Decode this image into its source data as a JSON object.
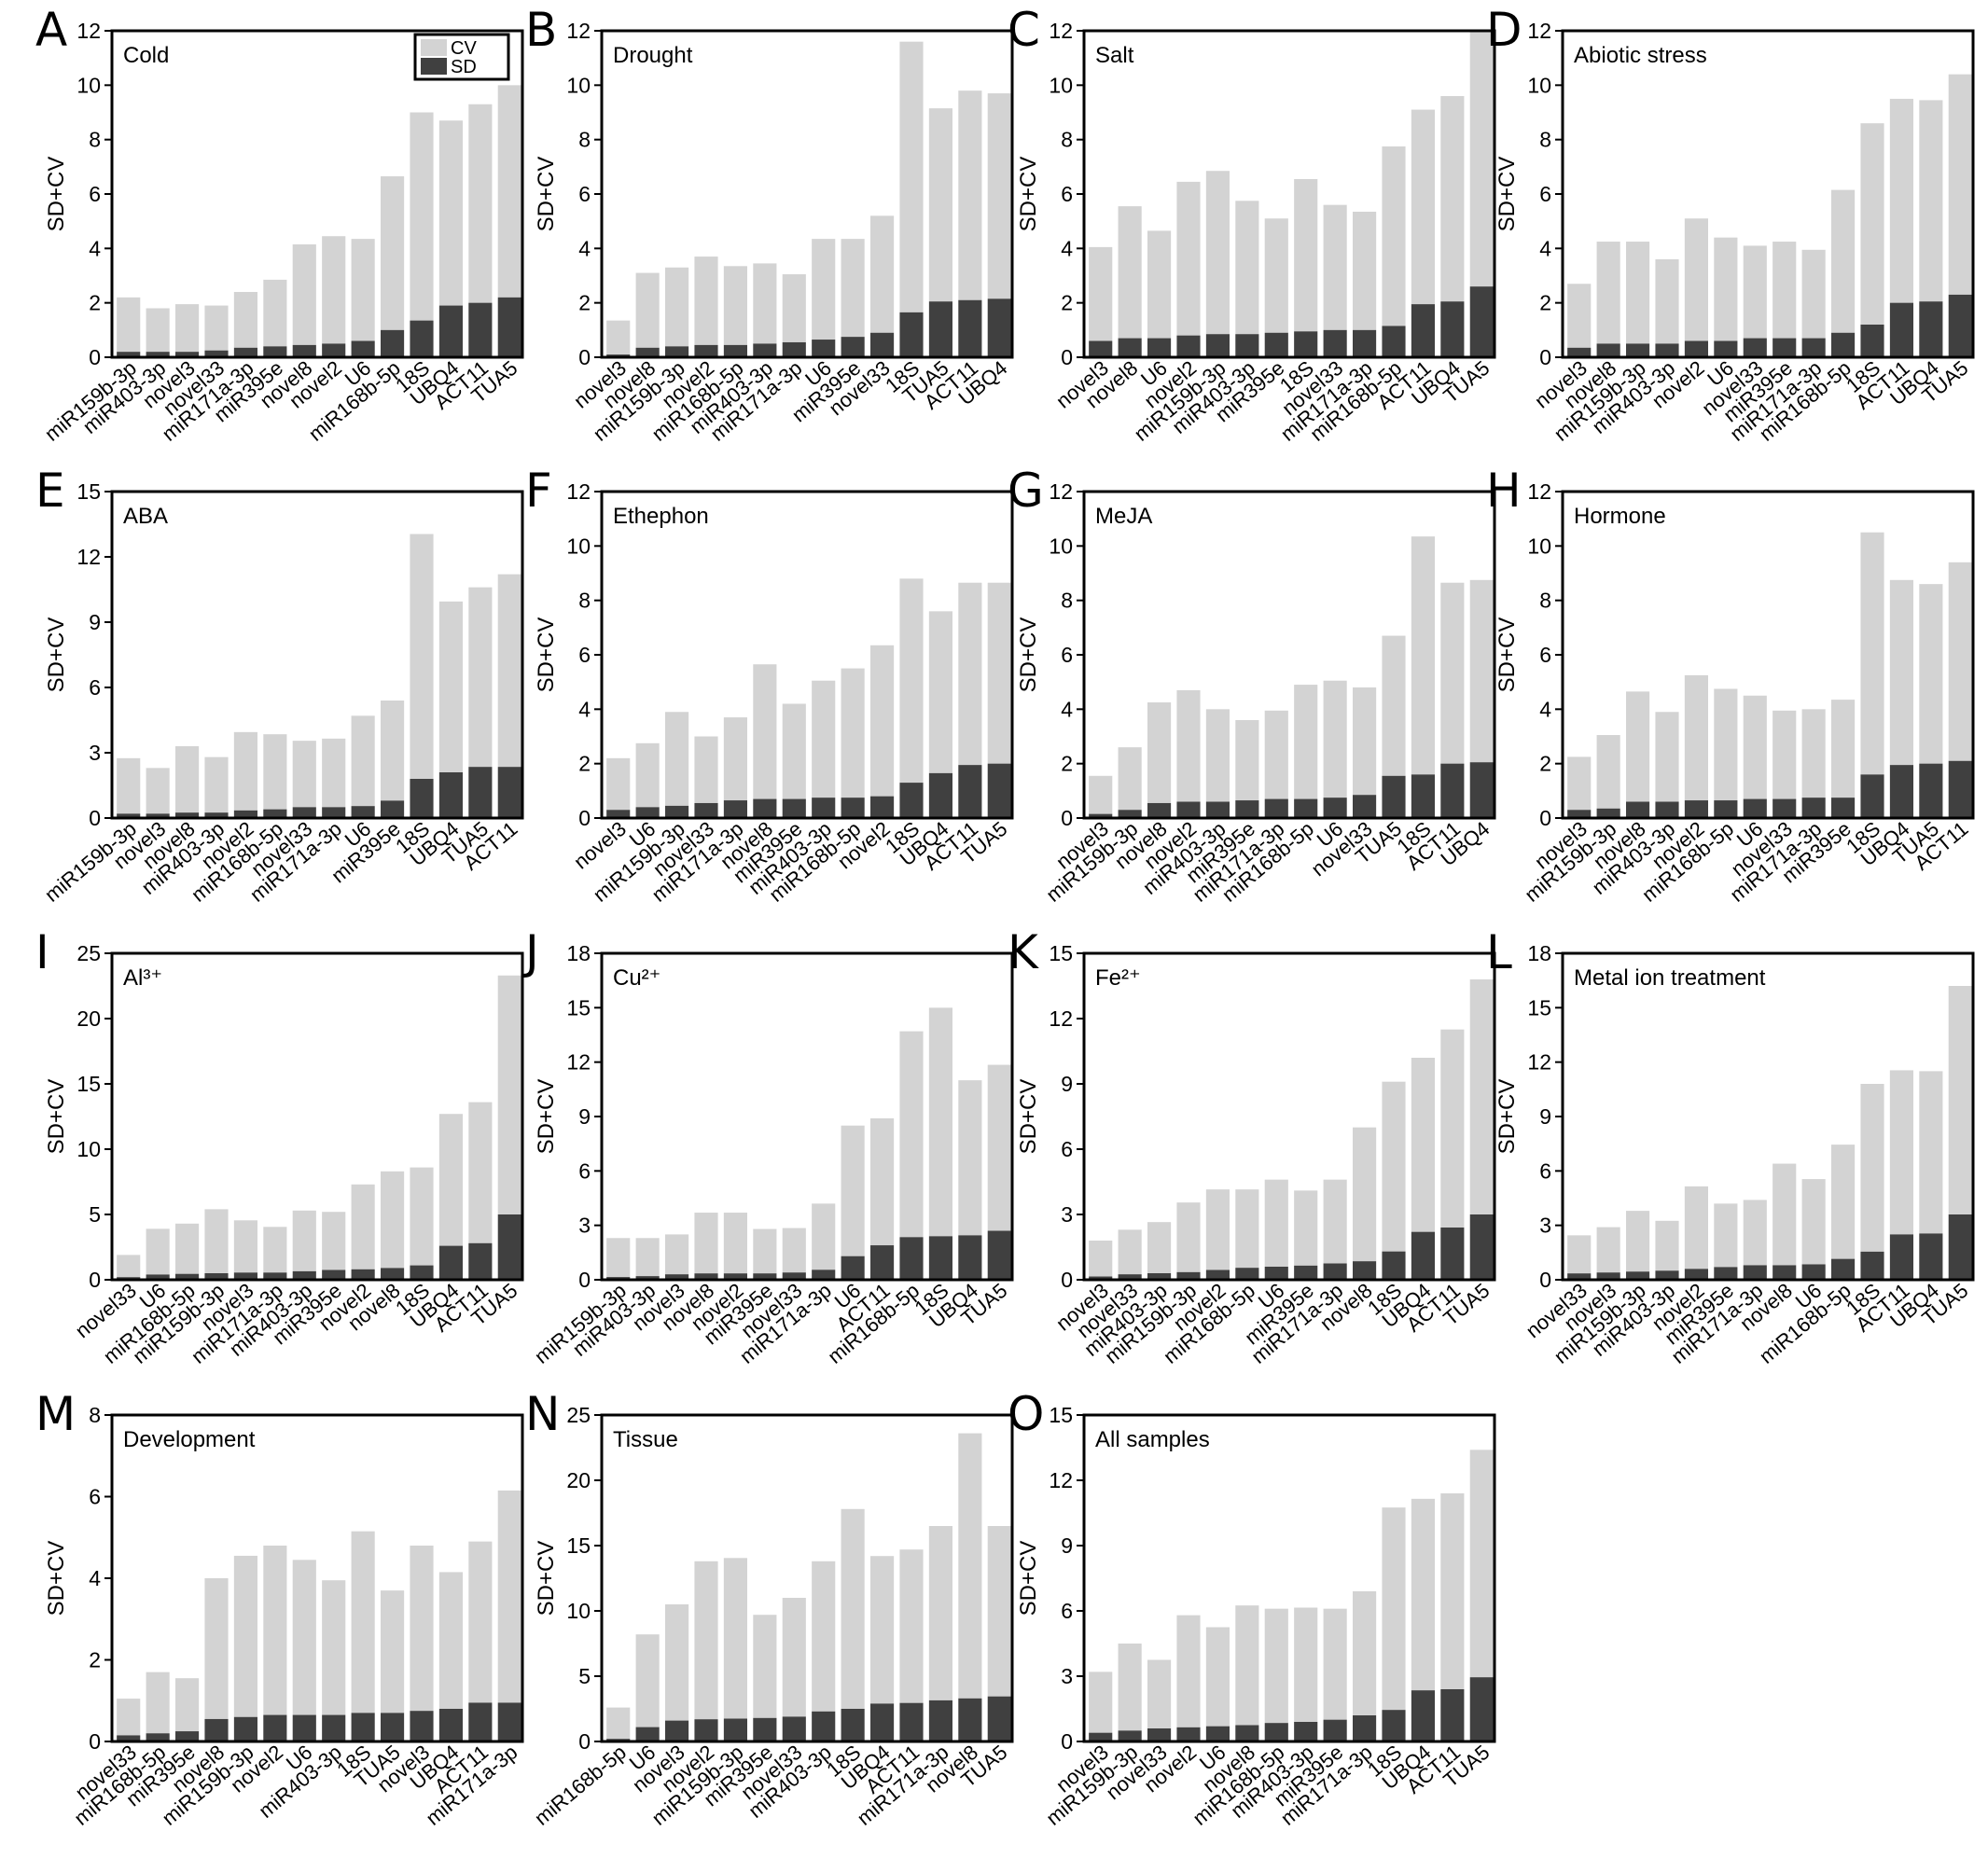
{
  "figure": {
    "y_axis_label": "SD+CV",
    "legend": {
      "labels": [
        "CV",
        "SD"
      ],
      "colors": [
        "#d3d3d3",
        "#404040"
      ],
      "placement": "top-right (panel A)"
    },
    "colors": {
      "cv": "#d3d3d3",
      "sd": "#404040",
      "frame": "#000000"
    }
  },
  "chart_data": [
    {
      "type": "bar",
      "stacked": true,
      "panel": "A",
      "title": "Cold",
      "ylabel": "SD+CV",
      "ylim": [
        0,
        12
      ],
      "yticks": [
        0,
        2,
        4,
        6,
        8,
        10,
        12
      ],
      "categories": [
        "miR159b-3p",
        "miR403-3p",
        "novel3",
        "novel33",
        "miR171a-3p",
        "miR395e",
        "novel8",
        "novel2",
        "U6",
        "miR168b-5p",
        "18S",
        "UBQ4",
        "ACT11",
        "TUA5"
      ],
      "series": [
        {
          "name": "SD",
          "values": [
            0.2,
            0.2,
            0.2,
            0.25,
            0.35,
            0.4,
            0.45,
            0.5,
            0.6,
            1.0,
            1.35,
            1.9,
            2.0,
            2.2
          ]
        },
        {
          "name": "CV",
          "values": [
            2.0,
            1.6,
            1.75,
            1.65,
            2.05,
            2.45,
            3.7,
            3.95,
            3.75,
            5.65,
            7.65,
            6.8,
            7.3,
            7.8
          ]
        }
      ],
      "legend": "top-right"
    },
    {
      "type": "bar",
      "stacked": true,
      "panel": "B",
      "title": "Drought",
      "ylabel": "SD+CV",
      "ylim": [
        0,
        12
      ],
      "yticks": [
        0,
        2,
        4,
        6,
        8,
        10,
        12
      ],
      "categories": [
        "novel3",
        "novel8",
        "miR159b-3p",
        "novel2",
        "miR168b-5p",
        "miR403-3p",
        "miR171a-3p",
        "U6",
        "miR395e",
        "novel33",
        "18S",
        "TUA5",
        "ACT11",
        "UBQ4"
      ],
      "series": [
        {
          "name": "SD",
          "values": [
            0.1,
            0.35,
            0.4,
            0.45,
            0.45,
            0.5,
            0.55,
            0.65,
            0.75,
            0.9,
            1.65,
            2.05,
            2.1,
            2.15
          ]
        },
        {
          "name": "CV",
          "values": [
            1.25,
            2.75,
            2.9,
            3.25,
            2.9,
            2.95,
            2.5,
            3.7,
            3.6,
            4.3,
            9.95,
            7.1,
            7.7,
            7.55
          ]
        }
      ]
    },
    {
      "type": "bar",
      "stacked": true,
      "panel": "C",
      "title": "Salt",
      "ylabel": "SD+CV",
      "ylim": [
        0,
        12
      ],
      "yticks": [
        0,
        2,
        4,
        6,
        8,
        10,
        12
      ],
      "categories": [
        "novel3",
        "novel8",
        "U6",
        "novel2",
        "miR159b-3p",
        "miR403-3p",
        "miR395e",
        "18S",
        "novel33",
        "miR171a-3p",
        "miR168b-5p",
        "ACT11",
        "UBQ4",
        "TUA5"
      ],
      "series": [
        {
          "name": "SD",
          "values": [
            0.6,
            0.7,
            0.7,
            0.8,
            0.85,
            0.85,
            0.9,
            0.95,
            1.0,
            1.0,
            1.15,
            1.95,
            2.05,
            2.6
          ]
        },
        {
          "name": "CV",
          "values": [
            3.45,
            4.85,
            3.95,
            5.65,
            6.0,
            4.9,
            4.2,
            5.6,
            4.6,
            4.35,
            6.6,
            7.15,
            7.55,
            9.4
          ]
        }
      ]
    },
    {
      "type": "bar",
      "stacked": true,
      "panel": "D",
      "title": "Abiotic stress",
      "ylabel": "SD+CV",
      "ylim": [
        0,
        12
      ],
      "yticks": [
        0,
        2,
        4,
        6,
        8,
        10,
        12
      ],
      "categories": [
        "novel3",
        "novel8",
        "miR159b-3p",
        "miR403-3p",
        "novel2",
        "U6",
        "novel33",
        "miR395e",
        "miR171a-3p",
        "miR168b-5p",
        "18S",
        "ACT11",
        "UBQ4",
        "TUA5"
      ],
      "series": [
        {
          "name": "SD",
          "values": [
            0.35,
            0.5,
            0.5,
            0.5,
            0.6,
            0.6,
            0.7,
            0.7,
            0.7,
            0.9,
            1.2,
            2.0,
            2.05,
            2.3
          ]
        },
        {
          "name": "CV",
          "values": [
            2.35,
            3.75,
            3.75,
            3.1,
            4.5,
            3.8,
            3.4,
            3.55,
            3.25,
            5.25,
            7.4,
            7.5,
            7.4,
            8.1
          ]
        }
      ]
    },
    {
      "type": "bar",
      "stacked": true,
      "panel": "E",
      "title": "ABA",
      "ylabel": "SD+CV",
      "ylim": [
        0,
        15
      ],
      "yticks": [
        0,
        3,
        6,
        9,
        12,
        15
      ],
      "categories": [
        "miR159b-3p",
        "novel3",
        "novel8",
        "miR403-3p",
        "novel2",
        "miR168b-5p",
        "novel33",
        "miR171a-3p",
        "U6",
        "miR395e",
        "18S",
        "UBQ4",
        "TUA5",
        "ACT11"
      ],
      "series": [
        {
          "name": "SD",
          "values": [
            0.2,
            0.2,
            0.25,
            0.25,
            0.35,
            0.4,
            0.5,
            0.5,
            0.55,
            0.8,
            1.8,
            2.1,
            2.35,
            2.35
          ]
        },
        {
          "name": "CV",
          "values": [
            2.55,
            2.1,
            3.05,
            2.55,
            3.6,
            3.45,
            3.05,
            3.15,
            4.15,
            4.6,
            11.25,
            7.85,
            8.25,
            8.85
          ]
        }
      ]
    },
    {
      "type": "bar",
      "stacked": true,
      "panel": "F",
      "title": "Ethephon",
      "ylabel": "SD+CV",
      "ylim": [
        0,
        12
      ],
      "yticks": [
        0,
        2,
        4,
        6,
        8,
        10,
        12
      ],
      "categories": [
        "novel3",
        "U6",
        "miR159b-3p",
        "novel33",
        "miR171a-3p",
        "novel8",
        "miR395e",
        "miR403-3p",
        "miR168b-5p",
        "novel2",
        "18S",
        "UBQ4",
        "ACT11",
        "TUA5"
      ],
      "series": [
        {
          "name": "SD",
          "values": [
            0.3,
            0.4,
            0.45,
            0.55,
            0.65,
            0.7,
            0.7,
            0.75,
            0.75,
            0.8,
            1.3,
            1.65,
            1.95,
            2.0
          ]
        },
        {
          "name": "CV",
          "values": [
            1.9,
            2.35,
            3.45,
            2.45,
            3.05,
            4.95,
            3.5,
            4.3,
            4.75,
            5.55,
            7.5,
            5.95,
            6.7,
            6.65
          ]
        }
      ]
    },
    {
      "type": "bar",
      "stacked": true,
      "panel": "G",
      "title": "MeJA",
      "ylabel": "SD+CV",
      "ylim": [
        0,
        12
      ],
      "yticks": [
        0,
        2,
        4,
        6,
        8,
        10,
        12
      ],
      "categories": [
        "novel3",
        "miR159b-3p",
        "novel8",
        "novel2",
        "miR403-3p",
        "miR395e",
        "miR171a-3p",
        "miR168b-5p",
        "U6",
        "novel33",
        "TUA5",
        "18S",
        "ACT11",
        "UBQ4"
      ],
      "series": [
        {
          "name": "SD",
          "values": [
            0.15,
            0.3,
            0.55,
            0.6,
            0.6,
            0.65,
            0.7,
            0.7,
            0.75,
            0.85,
            1.55,
            1.6,
            2.0,
            2.05
          ]
        },
        {
          "name": "CV",
          "values": [
            1.4,
            2.3,
            3.7,
            4.1,
            3.4,
            2.95,
            3.25,
            4.2,
            4.3,
            3.95,
            5.15,
            8.75,
            6.65,
            6.7
          ]
        }
      ]
    },
    {
      "type": "bar",
      "stacked": true,
      "panel": "H",
      "title": "Hormone",
      "ylabel": "SD+CV",
      "ylim": [
        0,
        12
      ],
      "yticks": [
        0,
        2,
        4,
        6,
        8,
        10,
        12
      ],
      "categories": [
        "novel3",
        "miR159b-3p",
        "novel8",
        "miR403-3p",
        "novel2",
        "miR168b-5p",
        "U6",
        "novel33",
        "miR171a-3p",
        "miR395e",
        "18S",
        "UBQ4",
        "TUA5",
        "ACT11"
      ],
      "series": [
        {
          "name": "SD",
          "values": [
            0.3,
            0.35,
            0.6,
            0.6,
            0.65,
            0.65,
            0.7,
            0.7,
            0.75,
            0.75,
            1.6,
            1.95,
            2.0,
            2.1
          ]
        },
        {
          "name": "CV",
          "values": [
            1.95,
            2.7,
            4.05,
            3.3,
            4.6,
            4.1,
            3.8,
            3.25,
            3.25,
            3.6,
            8.9,
            6.8,
            6.6,
            7.3
          ]
        }
      ]
    },
    {
      "type": "bar",
      "stacked": true,
      "panel": "I",
      "title": "Al³⁺",
      "ylabel": "SD+CV",
      "ylim": [
        0,
        25
      ],
      "yticks": [
        0,
        5,
        10,
        15,
        20,
        25
      ],
      "categories": [
        "novel33",
        "U6",
        "miR168b-5p",
        "miR159b-3p",
        "novel3",
        "miR171a-3p",
        "miR403-3p",
        "miR395e",
        "novel2",
        "novel8",
        "18S",
        "UBQ4",
        "ACT11",
        "TUA5"
      ],
      "series": [
        {
          "name": "SD",
          "values": [
            0.2,
            0.4,
            0.45,
            0.5,
            0.55,
            0.55,
            0.65,
            0.75,
            0.8,
            0.9,
            1.1,
            2.6,
            2.8,
            5.0
          ]
        },
        {
          "name": "CV",
          "values": [
            1.7,
            3.5,
            3.85,
            4.9,
            4.0,
            3.5,
            4.65,
            4.45,
            6.5,
            7.4,
            7.5,
            10.1,
            10.8,
            18.3
          ]
        }
      ]
    },
    {
      "type": "bar",
      "stacked": true,
      "panel": "J",
      "title": "Cu²⁺",
      "ylabel": "SD+CV",
      "ylim": [
        0,
        18
      ],
      "yticks": [
        0,
        3,
        6,
        9,
        12,
        15,
        18
      ],
      "categories": [
        "miR159b-3p",
        "miR403-3p",
        "novel3",
        "novel8",
        "novel2",
        "miR395e",
        "novel33",
        "miR171a-3p",
        "U6",
        "ACT11",
        "miR168b-5p",
        "18S",
        "UBQ4",
        "TUA5"
      ],
      "series": [
        {
          "name": "SD",
          "values": [
            0.15,
            0.2,
            0.3,
            0.35,
            0.35,
            0.35,
            0.4,
            0.55,
            1.3,
            1.9,
            2.35,
            2.4,
            2.45,
            2.7
          ]
        },
        {
          "name": "CV",
          "values": [
            2.15,
            2.1,
            2.2,
            3.35,
            3.35,
            2.45,
            2.45,
            3.65,
            7.2,
            7.0,
            11.35,
            12.6,
            8.55,
            9.15
          ]
        }
      ]
    },
    {
      "type": "bar",
      "stacked": true,
      "panel": "K",
      "title": "Fe²⁺",
      "ylabel": "SD+CV",
      "ylim": [
        0,
        15
      ],
      "yticks": [
        0,
        3,
        6,
        9,
        12,
        15
      ],
      "categories": [
        "novel3",
        "novel33",
        "miR403-3p",
        "miR159b-3p",
        "novel2",
        "miR168b-5p",
        "U6",
        "miR395e",
        "miR171a-3p",
        "novel8",
        "18S",
        "UBQ4",
        "ACT11",
        "TUA5"
      ],
      "series": [
        {
          "name": "SD",
          "values": [
            0.15,
            0.25,
            0.3,
            0.35,
            0.45,
            0.55,
            0.6,
            0.65,
            0.75,
            0.85,
            1.3,
            2.2,
            2.4,
            3.0
          ]
        },
        {
          "name": "CV",
          "values": [
            1.65,
            2.05,
            2.35,
            3.2,
            3.7,
            3.6,
            4.0,
            3.45,
            3.85,
            6.15,
            7.8,
            8.0,
            9.1,
            10.8
          ]
        }
      ]
    },
    {
      "type": "bar",
      "stacked": true,
      "panel": "L",
      "title": "Metal ion treatment",
      "ylabel": "SD+CV",
      "ylim": [
        0,
        18
      ],
      "yticks": [
        0,
        3,
        6,
        9,
        12,
        15,
        18
      ],
      "categories": [
        "novel33",
        "novel3",
        "miR159b-3p",
        "miR403-3p",
        "novel2",
        "miR395e",
        "miR171a-3p",
        "novel8",
        "U6",
        "miR168b-5p",
        "18S",
        "ACT11",
        "UBQ4",
        "TUA5"
      ],
      "series": [
        {
          "name": "SD",
          "values": [
            0.35,
            0.4,
            0.45,
            0.5,
            0.6,
            0.7,
            0.8,
            0.8,
            0.85,
            1.15,
            1.55,
            2.5,
            2.55,
            3.6
          ]
        },
        {
          "name": "CV",
          "values": [
            2.1,
            2.5,
            3.35,
            2.75,
            4.55,
            3.5,
            3.6,
            5.6,
            4.7,
            6.3,
            9.25,
            9.05,
            8.95,
            12.6
          ]
        }
      ]
    },
    {
      "type": "bar",
      "stacked": true,
      "panel": "M",
      "title": "Development",
      "ylabel": "SD+CV",
      "ylim": [
        0,
        8
      ],
      "yticks": [
        0,
        2,
        4,
        6,
        8
      ],
      "categories": [
        "novel33",
        "miR168b-5p",
        "miR395e",
        "novel8",
        "miR159b-3p",
        "novel2",
        "U6",
        "miR403-3p",
        "18S",
        "TUA5",
        "novel3",
        "UBQ4",
        "ACT11",
        "miR171a-3p"
      ],
      "series": [
        {
          "name": "SD",
          "values": [
            0.15,
            0.2,
            0.25,
            0.55,
            0.6,
            0.65,
            0.65,
            0.65,
            0.7,
            0.7,
            0.75,
            0.8,
            0.95,
            0.95
          ]
        },
        {
          "name": "CV",
          "values": [
            0.9,
            1.5,
            1.3,
            3.45,
            3.95,
            4.15,
            3.8,
            3.3,
            4.45,
            3.0,
            4.05,
            3.35,
            3.95,
            5.2
          ]
        }
      ]
    },
    {
      "type": "bar",
      "stacked": true,
      "panel": "N",
      "title": "Tissue",
      "ylabel": "SD+CV",
      "ylim": [
        0,
        25
      ],
      "yticks": [
        0,
        5,
        10,
        15,
        20,
        25
      ],
      "categories": [
        "miR168b-5p",
        "U6",
        "novel3",
        "novel2",
        "miR159b-3p",
        "miR395e",
        "novel33",
        "miR403-3p",
        "18S",
        "UBQ4",
        "ACT11",
        "miR171a-3p",
        "novel8",
        "TUA5"
      ],
      "series": [
        {
          "name": "SD",
          "values": [
            0.2,
            1.1,
            1.6,
            1.7,
            1.75,
            1.8,
            1.9,
            2.3,
            2.5,
            2.9,
            2.95,
            3.15,
            3.3,
            3.45
          ]
        },
        {
          "name": "CV",
          "values": [
            2.4,
            7.1,
            8.9,
            12.1,
            12.3,
            7.9,
            9.1,
            11.5,
            15.3,
            11.3,
            11.75,
            13.35,
            20.3,
            13.05
          ]
        }
      ]
    },
    {
      "type": "bar",
      "stacked": true,
      "panel": "O",
      "title": "All samples",
      "ylabel": "SD+CV",
      "ylim": [
        0,
        15
      ],
      "yticks": [
        0,
        3,
        6,
        9,
        12,
        15
      ],
      "categories": [
        "novel3",
        "miR159b-3p",
        "novel33",
        "novel2",
        "U6",
        "novel8",
        "miR168b-5p",
        "miR403-3p",
        "miR395e",
        "miR171a-3p",
        "18S",
        "UBQ4",
        "ACT11",
        "TUA5"
      ],
      "series": [
        {
          "name": "SD",
          "values": [
            0.4,
            0.5,
            0.6,
            0.65,
            0.7,
            0.75,
            0.85,
            0.9,
            1.0,
            1.2,
            1.45,
            2.35,
            2.4,
            2.95
          ]
        },
        {
          "name": "CV",
          "values": [
            2.8,
            4.0,
            3.15,
            5.15,
            4.55,
            5.5,
            5.25,
            5.25,
            5.1,
            5.7,
            9.3,
            8.8,
            9.0,
            10.45
          ]
        }
      ]
    }
  ]
}
